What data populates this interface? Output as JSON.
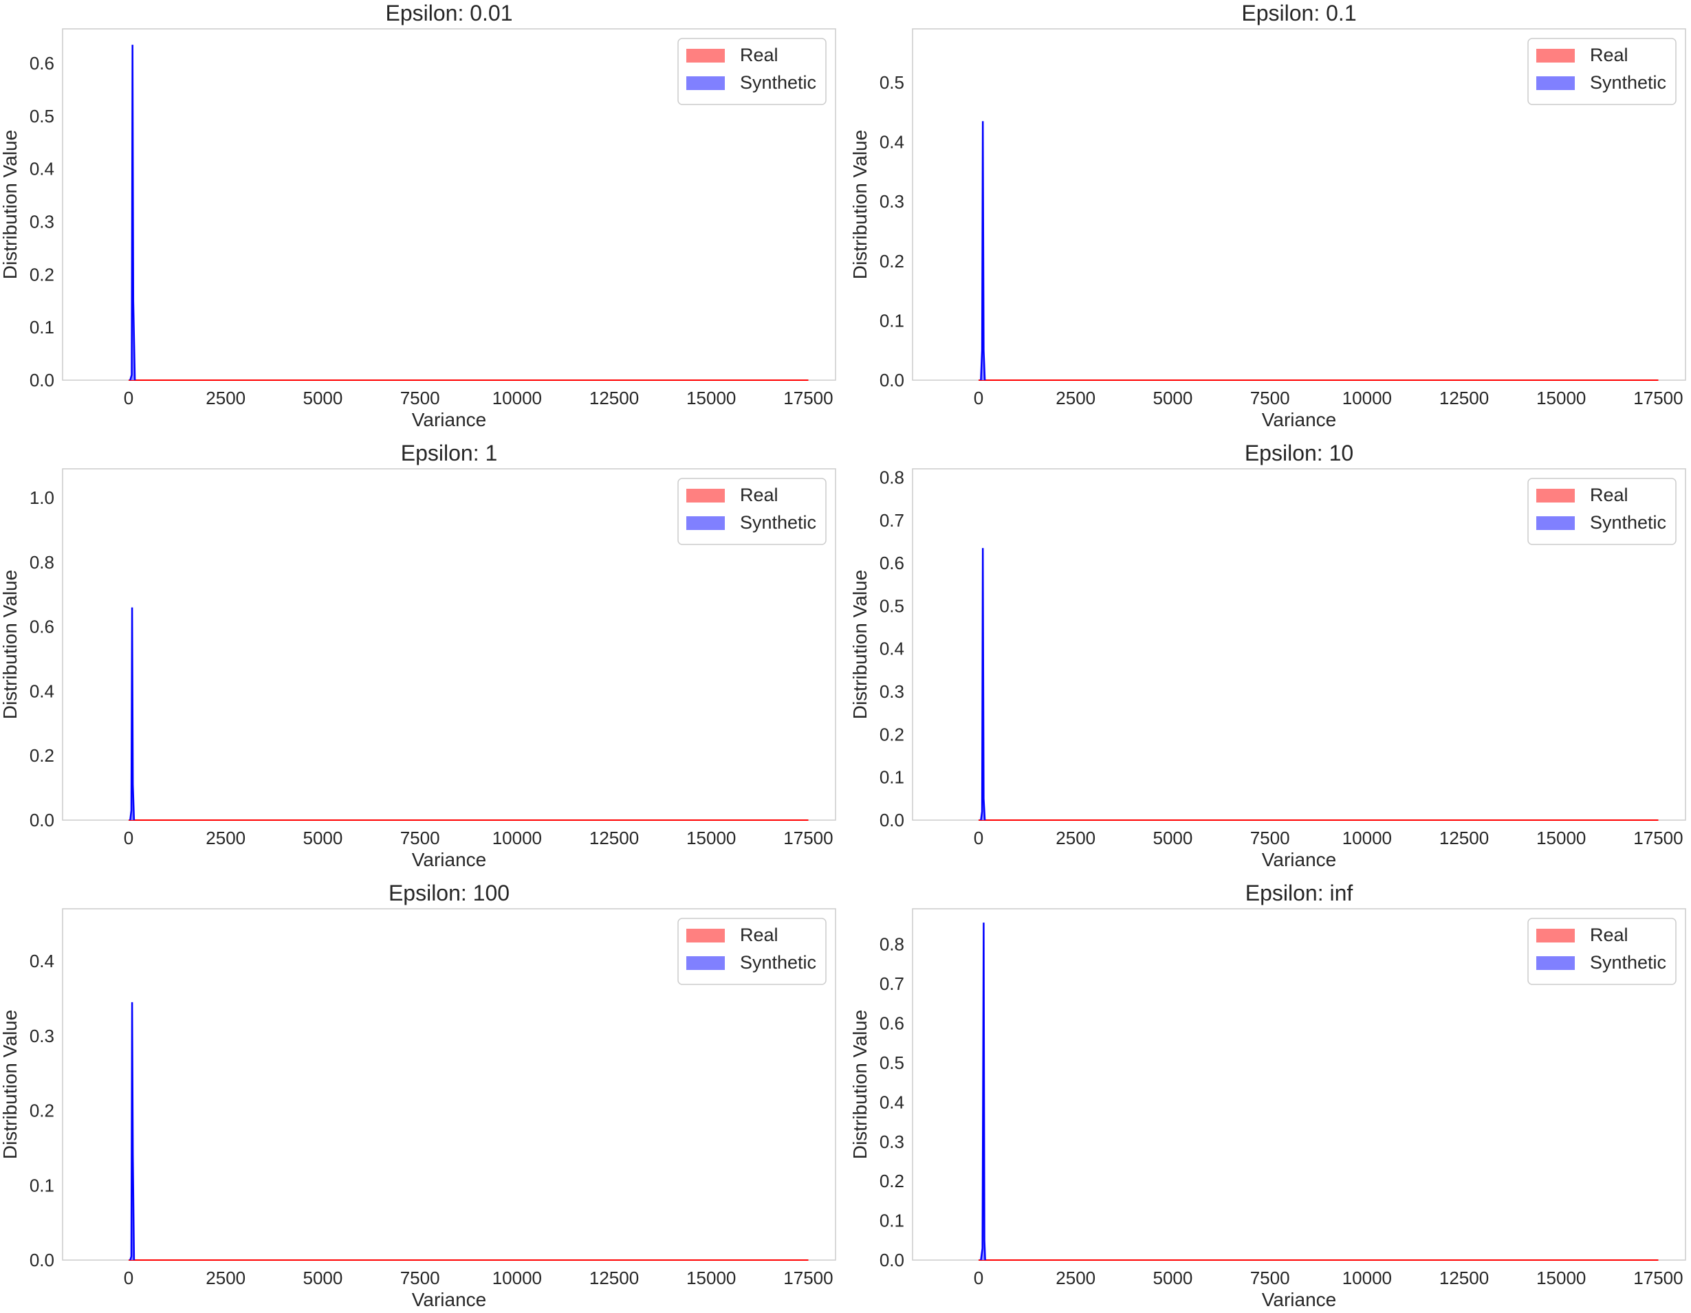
{
  "figure": {
    "background": "#ffffff"
  },
  "colors": {
    "real": "#ff0000",
    "real_fill": "#ff8080",
    "synthetic": "#0000ff",
    "synthetic_fill": "#8080ff",
    "axes_edge": "#cccccc"
  },
  "chart_data": [
    {
      "type": "area",
      "title": "Epsilon: 0.01",
      "xlabel": "Variance",
      "ylabel": "Distribution Value",
      "xlim": [
        -1700,
        18200
      ],
      "ylim": [
        0,
        0.665
      ],
      "xticks": [
        0,
        2500,
        5000,
        7500,
        10000,
        12500,
        15000,
        17500
      ],
      "xtick_labels": [
        "0",
        "2500",
        "5000",
        "7500",
        "10000",
        "12500",
        "15000",
        "17500"
      ],
      "yticks": [
        0.0,
        0.1,
        0.2,
        0.3,
        0.4,
        0.5,
        0.6
      ],
      "ytick_labels": [
        "0.0",
        "0.1",
        "0.2",
        "0.3",
        "0.4",
        "0.5",
        "0.6"
      ],
      "grid": false,
      "legend": {
        "position": "top-right",
        "entries": [
          "Real",
          "Synthetic"
        ]
      },
      "series": [
        {
          "name": "Real",
          "x": [
            0,
            17500
          ],
          "y": [
            0.0,
            0.0
          ]
        },
        {
          "name": "Synthetic",
          "x": [
            40,
            80,
            100,
            120,
            160
          ],
          "y": [
            0.0,
            0.01,
            0.635,
            0.15,
            0.0
          ]
        }
      ]
    },
    {
      "type": "area",
      "title": "Epsilon: 0.1",
      "xlabel": "Variance",
      "ylabel": "Distribution Value",
      "xlim": [
        -1700,
        18200
      ],
      "ylim": [
        0,
        0.59
      ],
      "xticks": [
        0,
        2500,
        5000,
        7500,
        10000,
        12500,
        15000,
        17500
      ],
      "xtick_labels": [
        "0",
        "2500",
        "5000",
        "7500",
        "10000",
        "12500",
        "15000",
        "17500"
      ],
      "yticks": [
        0.0,
        0.1,
        0.2,
        0.3,
        0.4,
        0.5
      ],
      "ytick_labels": [
        "0.0",
        "0.1",
        "0.2",
        "0.3",
        "0.4",
        "0.5"
      ],
      "grid": false,
      "legend": {
        "position": "top-right",
        "entries": [
          "Real",
          "Synthetic"
        ]
      },
      "series": [
        {
          "name": "Real",
          "x": [
            0,
            17500
          ],
          "y": [
            0.0,
            0.0
          ]
        },
        {
          "name": "Synthetic",
          "x": [
            60,
            90,
            110,
            130,
            160
          ],
          "y": [
            0.0,
            0.05,
            0.435,
            0.05,
            0.0
          ]
        }
      ]
    },
    {
      "type": "area",
      "title": "Epsilon: 1",
      "xlabel": "Variance",
      "ylabel": "Distribution Value",
      "xlim": [
        -1700,
        18200
      ],
      "ylim": [
        0,
        1.09
      ],
      "xticks": [
        0,
        2500,
        5000,
        7500,
        10000,
        12500,
        15000,
        17500
      ],
      "xtick_labels": [
        "0",
        "2500",
        "5000",
        "7500",
        "10000",
        "12500",
        "15000",
        "17500"
      ],
      "yticks": [
        0.0,
        0.2,
        0.4,
        0.6,
        0.8,
        1.0
      ],
      "ytick_labels": [
        "0.0",
        "0.2",
        "0.4",
        "0.6",
        "0.8",
        "1.0"
      ],
      "grid": false,
      "legend": {
        "position": "top-right",
        "entries": [
          "Real",
          "Synthetic"
        ]
      },
      "series": [
        {
          "name": "Real",
          "x": [
            0,
            17500
          ],
          "y": [
            0.0,
            0.0
          ]
        },
        {
          "name": "Synthetic",
          "x": [
            40,
            70,
            90,
            110,
            140
          ],
          "y": [
            0.0,
            0.03,
            0.66,
            0.11,
            0.0
          ]
        }
      ]
    },
    {
      "type": "area",
      "title": "Epsilon: 10",
      "xlabel": "Variance",
      "ylabel": "Distribution Value",
      "xlim": [
        -1700,
        18200
      ],
      "ylim": [
        0,
        0.82
      ],
      "xticks": [
        0,
        2500,
        5000,
        7500,
        10000,
        12500,
        15000,
        17500
      ],
      "xtick_labels": [
        "0",
        "2500",
        "5000",
        "7500",
        "10000",
        "12500",
        "15000",
        "17500"
      ],
      "yticks": [
        0.0,
        0.1,
        0.2,
        0.3,
        0.4,
        0.5,
        0.6,
        0.7,
        0.8
      ],
      "ytick_labels": [
        "0.0",
        "0.1",
        "0.2",
        "0.3",
        "0.4",
        "0.5",
        "0.6",
        "0.7",
        "0.8"
      ],
      "grid": false,
      "legend": {
        "position": "top-right",
        "entries": [
          "Real",
          "Synthetic"
        ]
      },
      "series": [
        {
          "name": "Real",
          "x": [
            0,
            17500
          ],
          "y": [
            0.0,
            0.0
          ]
        },
        {
          "name": "Synthetic",
          "x": [
            60,
            90,
            110,
            130,
            160
          ],
          "y": [
            0.0,
            0.02,
            0.635,
            0.05,
            0.0
          ]
        }
      ]
    },
    {
      "type": "area",
      "title": "Epsilon: 100",
      "xlabel": "Variance",
      "ylabel": "Distribution Value",
      "xlim": [
        -1700,
        18200
      ],
      "ylim": [
        0,
        0.47
      ],
      "xticks": [
        0,
        2500,
        5000,
        7500,
        10000,
        12500,
        15000,
        17500
      ],
      "xtick_labels": [
        "0",
        "2500",
        "5000",
        "7500",
        "10000",
        "12500",
        "15000",
        "17500"
      ],
      "yticks": [
        0.0,
        0.1,
        0.2,
        0.3,
        0.4
      ],
      "ytick_labels": [
        "0.0",
        "0.1",
        "0.2",
        "0.3",
        "0.4"
      ],
      "grid": false,
      "legend": {
        "position": "top-right",
        "entries": [
          "Real",
          "Synthetic"
        ]
      },
      "series": [
        {
          "name": "Real",
          "x": [
            0,
            17500
          ],
          "y": [
            0.0,
            0.0
          ]
        },
        {
          "name": "Synthetic",
          "x": [
            40,
            70,
            90,
            110,
            140
          ],
          "y": [
            0.0,
            0.005,
            0.345,
            0.14,
            0.0
          ]
        }
      ]
    },
    {
      "type": "area",
      "title": "Epsilon: inf",
      "xlabel": "Variance",
      "ylabel": "Distribution Value",
      "xlim": [
        -1700,
        18200
      ],
      "ylim": [
        0,
        0.89
      ],
      "xticks": [
        0,
        2500,
        5000,
        7500,
        10000,
        12500,
        15000,
        17500
      ],
      "xtick_labels": [
        "0",
        "2500",
        "5000",
        "7500",
        "10000",
        "12500",
        "15000",
        "17500"
      ],
      "yticks": [
        0.0,
        0.1,
        0.2,
        0.3,
        0.4,
        0.5,
        0.6,
        0.7,
        0.8
      ],
      "ytick_labels": [
        "0.0",
        "0.1",
        "0.2",
        "0.3",
        "0.4",
        "0.5",
        "0.6",
        "0.7",
        "0.8"
      ],
      "grid": false,
      "legend": {
        "position": "top-right",
        "entries": [
          "Real",
          "Synthetic"
        ]
      },
      "series": [
        {
          "name": "Real",
          "x": [
            0,
            17500
          ],
          "y": [
            0.0,
            0.0
          ]
        },
        {
          "name": "Synthetic",
          "x": [
            60,
            100,
            130,
            150,
            170
          ],
          "y": [
            0.0,
            0.03,
            0.855,
            0.05,
            0.0
          ]
        }
      ]
    }
  ]
}
